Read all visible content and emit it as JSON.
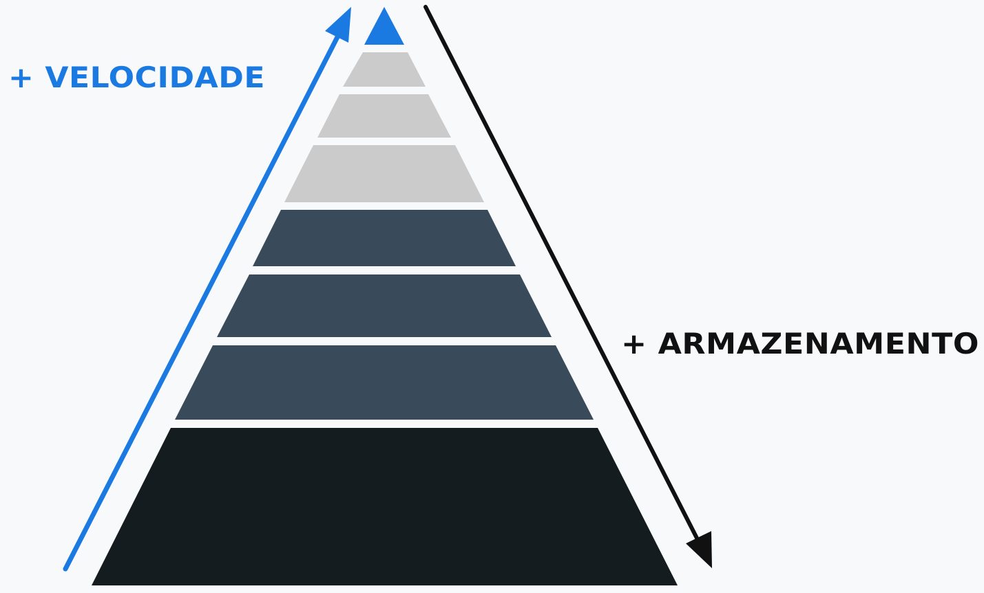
{
  "labels": {
    "speed": "+ VELOCIDADE",
    "storage": "+ ARMAZENAMENTO"
  },
  "colors": {
    "background": "#f8f9fa",
    "speed_arrow": "#1a7ae2",
    "storage_arrow": "#111111",
    "apex": "#1a7ae2",
    "tier_light": "#cbcbcb",
    "tier_mid": "#394a5b",
    "tier_dark": "#151c1f"
  },
  "pyramid": {
    "tiers": [
      {
        "name": "apex",
        "color_key": "apex"
      },
      {
        "name": "tier-1",
        "color_key": "tier_light"
      },
      {
        "name": "tier-2",
        "color_key": "tier_light"
      },
      {
        "name": "tier-3",
        "color_key": "tier_light"
      },
      {
        "name": "tier-4",
        "color_key": "tier_mid"
      },
      {
        "name": "tier-5",
        "color_key": "tier_mid"
      },
      {
        "name": "tier-6",
        "color_key": "tier_mid"
      },
      {
        "name": "tier-7",
        "color_key": "tier_dark"
      }
    ]
  }
}
